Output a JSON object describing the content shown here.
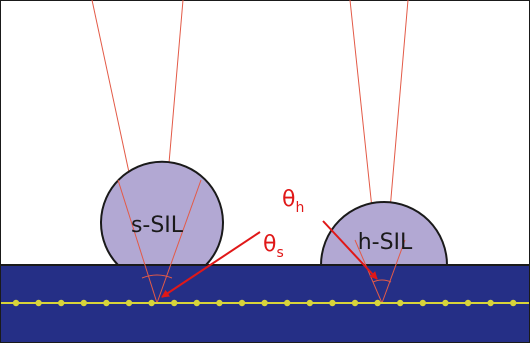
{
  "diagram": {
    "labels": {
      "s_sil": "s-SIL",
      "h_sil": "h-SIL"
    },
    "angles": {
      "theta_s": {
        "symbol": "θ",
        "subscript": "s"
      },
      "theta_h": {
        "symbol": "θ",
        "subscript": "h"
      }
    },
    "colors": {
      "substrate": "#252f86",
      "lens_fill": "#b2a8d3",
      "lens_stroke": "#1a1a1a",
      "ray": "#e35a47",
      "annotation": "#e01818",
      "layer_line": "#d8d43a",
      "background": "#ffffff"
    }
  }
}
